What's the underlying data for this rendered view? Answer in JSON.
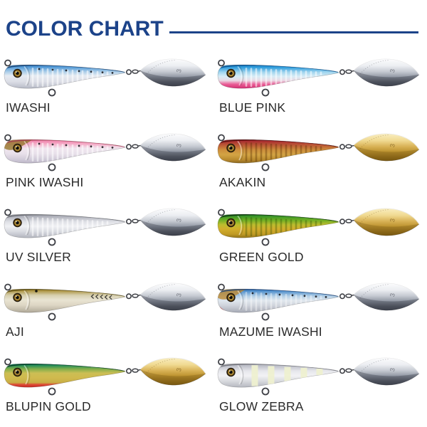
{
  "header": {
    "title": "COLOR CHART",
    "accent_color": "#1c4389"
  },
  "label_color": "#2b2b2b",
  "hardware_color": "#3e4046",
  "eye": {
    "ring": "#241a0c",
    "iris_center": "#f6dc82",
    "iris_edge": "#8a6416",
    "pupil": "#0c0c0c"
  },
  "blade_palettes": {
    "silver": {
      "stops": [
        [
          0,
          "#ffffff"
        ],
        [
          0.28,
          "#eceef2"
        ],
        [
          0.48,
          "#c6cad2"
        ],
        [
          0.66,
          "#9298a4"
        ],
        [
          0.84,
          "#5f646f"
        ],
        [
          1,
          "#474b55"
        ]
      ],
      "overlay": "rgba(25,28,38,0.28)",
      "mark": "rgba(60,64,74,0.6)"
    },
    "gold": {
      "stops": [
        [
          0,
          "#fbf2ca"
        ],
        [
          0.28,
          "#f0da92"
        ],
        [
          0.48,
          "#d9b357"
        ],
        [
          0.66,
          "#bd9330"
        ],
        [
          0.84,
          "#97711c"
        ],
        [
          1,
          "#7b5a12"
        ]
      ],
      "overlay": "rgba(100,70,10,0.25)",
      "mark": "rgba(110,80,20,0.65)"
    }
  },
  "blade_mark": "3",
  "lures": [
    {
      "label": "IWASHI",
      "blade": "silver",
      "top_line": "#16406f",
      "ribs": "rgba(255,255,255,0.55)",
      "spots": true,
      "body_stops": [
        [
          0,
          "#2a66ac"
        ],
        [
          0.16,
          "#4f97d6"
        ],
        [
          0.34,
          "#a8cce8"
        ],
        [
          0.5,
          "#e6ebf2"
        ],
        [
          0.72,
          "#dcdee6"
        ],
        [
          0.9,
          "#c2c5d0"
        ],
        [
          1,
          "#b0b4c0"
        ]
      ]
    },
    {
      "label": "BLUE PINK",
      "blade": "silver",
      "top_line": "#0a4f8c",
      "ribs": "rgba(255,255,255,0.55)",
      "body_stops": [
        [
          0,
          "#0e6cb4"
        ],
        [
          0.18,
          "#2f9ddc"
        ],
        [
          0.36,
          "#9fd4ee"
        ],
        [
          0.52,
          "#d6ecf6"
        ],
        [
          0.68,
          "#e9d9e4"
        ],
        [
          0.82,
          "#ea5d96"
        ],
        [
          1,
          "#cf2a6e"
        ]
      ]
    },
    {
      "label": "PINK IWASHI",
      "blade": "silver",
      "top_line": "#a03a50",
      "ribs": "rgba(255,255,255,0.55)",
      "spots": true,
      "head_color": "#97792e",
      "body_stops": [
        [
          0,
          "#b84a62"
        ],
        [
          0.1,
          "#ee7fa8"
        ],
        [
          0.26,
          "#f5aec9"
        ],
        [
          0.42,
          "#f0e6ef"
        ],
        [
          0.62,
          "#e8e0ea"
        ],
        [
          0.84,
          "#d0cad8"
        ],
        [
          1,
          "#b9b3c4"
        ]
      ]
    },
    {
      "label": "AKAKIN",
      "blade": "gold",
      "top_line": "#4c0c0c",
      "ribs": "rgba(80,40,0,0.35)",
      "body_stops": [
        [
          0,
          "#6e141c"
        ],
        [
          0.14,
          "#a82c30"
        ],
        [
          0.3,
          "#bd5a36"
        ],
        [
          0.48,
          "#cd8f3c"
        ],
        [
          0.66,
          "#d3a444"
        ],
        [
          0.85,
          "#b98a2e"
        ],
        [
          1,
          "#83611c"
        ]
      ]
    },
    {
      "label": "UV SILVER",
      "blade": "silver",
      "top_line": "#65676e",
      "ribs": "rgba(255,255,255,0.55)",
      "body_stops": [
        [
          0,
          "#85878f"
        ],
        [
          0.16,
          "#adafb8"
        ],
        [
          0.36,
          "#dedfe5"
        ],
        [
          0.54,
          "#f0f1f4"
        ],
        [
          0.74,
          "#d8dae0"
        ],
        [
          1,
          "#aeb1ba"
        ]
      ]
    },
    {
      "label": "GREEN GOLD",
      "blade": "gold",
      "top_line": "#0a2e0a",
      "ribs": "rgba(40,70,0,0.32)",
      "body_stops": [
        [
          0,
          "#123f12"
        ],
        [
          0.12,
          "#2c8c2a"
        ],
        [
          0.3,
          "#6cae24"
        ],
        [
          0.48,
          "#bdbd2e"
        ],
        [
          0.64,
          "#d2ae2c"
        ],
        [
          0.84,
          "#c09a24"
        ],
        [
          1,
          "#8a6c16"
        ]
      ]
    },
    {
      "label": "AJI",
      "blade": "silver",
      "top_line": "#544612",
      "chevrons": true,
      "gill_spot": true,
      "body_stops": [
        [
          0,
          "#7e6a22"
        ],
        [
          0.14,
          "#ab913c"
        ],
        [
          0.32,
          "#d6cfae"
        ],
        [
          0.5,
          "#e9e4d2"
        ],
        [
          0.7,
          "#ddd6c4"
        ],
        [
          0.88,
          "#c0b9a8"
        ],
        [
          1,
          "#a8a192"
        ]
      ]
    },
    {
      "label": "MAZUME IWASHI",
      "blade": "silver",
      "top_line": "#1a4076",
      "ribs": "rgba(255,255,255,0.4)",
      "spots": true,
      "head_color": "#c08c36",
      "throat_color": "#cc2f28",
      "body_stops": [
        [
          0,
          "#265c9e"
        ],
        [
          0.16,
          "#4f8fcc"
        ],
        [
          0.36,
          "#b3cfe6"
        ],
        [
          0.52,
          "#e0e7ee"
        ],
        [
          0.72,
          "#ced2da"
        ],
        [
          0.9,
          "#b2b6c0"
        ],
        [
          1,
          "#a2a6b2"
        ]
      ]
    },
    {
      "label": "BLUPIN GOLD",
      "blade": "gold",
      "top_line": "#033823",
      "body_stops": [
        [
          0,
          "#064c34"
        ],
        [
          0.12,
          "#15875c"
        ],
        [
          0.28,
          "#7fae4a"
        ],
        [
          0.44,
          "#ccbe54"
        ],
        [
          0.62,
          "#d0ba4e"
        ],
        [
          0.8,
          "#c9ae44"
        ],
        [
          0.88,
          "#dd4434"
        ],
        [
          1,
          "#bd2a22"
        ]
      ]
    },
    {
      "label": "GLOW ZEBRA",
      "blade": "silver",
      "top_line": "#6e7078",
      "zebra": "#eef0d0",
      "body_stops": [
        [
          0,
          "#8e9099"
        ],
        [
          0.16,
          "#bdbfc8"
        ],
        [
          0.36,
          "#e6e7ec"
        ],
        [
          0.54,
          "#f2f2f5"
        ],
        [
          0.74,
          "#d8dade"
        ],
        [
          1,
          "#b2b5bd"
        ]
      ]
    }
  ]
}
